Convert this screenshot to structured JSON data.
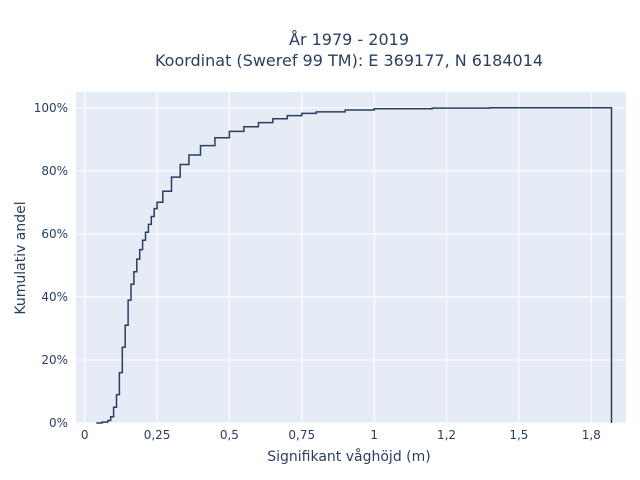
{
  "chart_data": {
    "type": "line",
    "style": "step-ecdf",
    "title_lines": [
      "År 1979 - 2019",
      "Koordinat (Sweref 99 TM): E 369177, N 6184014"
    ],
    "xlabel": "Signifikant våghöjd (m)",
    "ylabel": "Kumulativ andel",
    "xlim": [
      -0.03,
      1.87
    ],
    "ylim": [
      0,
      1.05
    ],
    "x_ticks": [
      0,
      0.25,
      0.5,
      0.75,
      1,
      1.25,
      1.5,
      1.75
    ],
    "x_tick_labels": [
      "0",
      "0,25",
      "0,5",
      "0,75",
      "1",
      "1,2",
      "1,5",
      "1,8"
    ],
    "y_ticks": [
      0,
      0.2,
      0.4,
      0.6,
      0.8,
      1.0
    ],
    "y_tick_labels": [
      "0%",
      "20%",
      "40%",
      "60%",
      "80%",
      "100%"
    ],
    "grid": true,
    "colors": {
      "line": "#2a3f5f",
      "plot_bg": "#e5ecf6",
      "grid": "#ffffff"
    },
    "x": [
      0.04,
      0.06,
      0.08,
      0.09,
      0.1,
      0.11,
      0.12,
      0.13,
      0.14,
      0.15,
      0.16,
      0.17,
      0.18,
      0.19,
      0.2,
      0.21,
      0.22,
      0.23,
      0.24,
      0.25,
      0.27,
      0.3,
      0.33,
      0.36,
      0.4,
      0.45,
      0.5,
      0.55,
      0.6,
      0.65,
      0.7,
      0.75,
      0.8,
      0.9,
      1.0,
      1.2,
      1.4,
      1.6,
      1.8,
      1.82
    ],
    "y": [
      0.0,
      0.003,
      0.008,
      0.02,
      0.05,
      0.09,
      0.16,
      0.24,
      0.31,
      0.39,
      0.44,
      0.48,
      0.52,
      0.55,
      0.58,
      0.605,
      0.63,
      0.655,
      0.68,
      0.7,
      0.735,
      0.78,
      0.82,
      0.85,
      0.88,
      0.905,
      0.925,
      0.94,
      0.953,
      0.965,
      0.975,
      0.982,
      0.987,
      0.993,
      0.997,
      0.999,
      1.0,
      1.0,
      1.0,
      0.0
    ]
  }
}
